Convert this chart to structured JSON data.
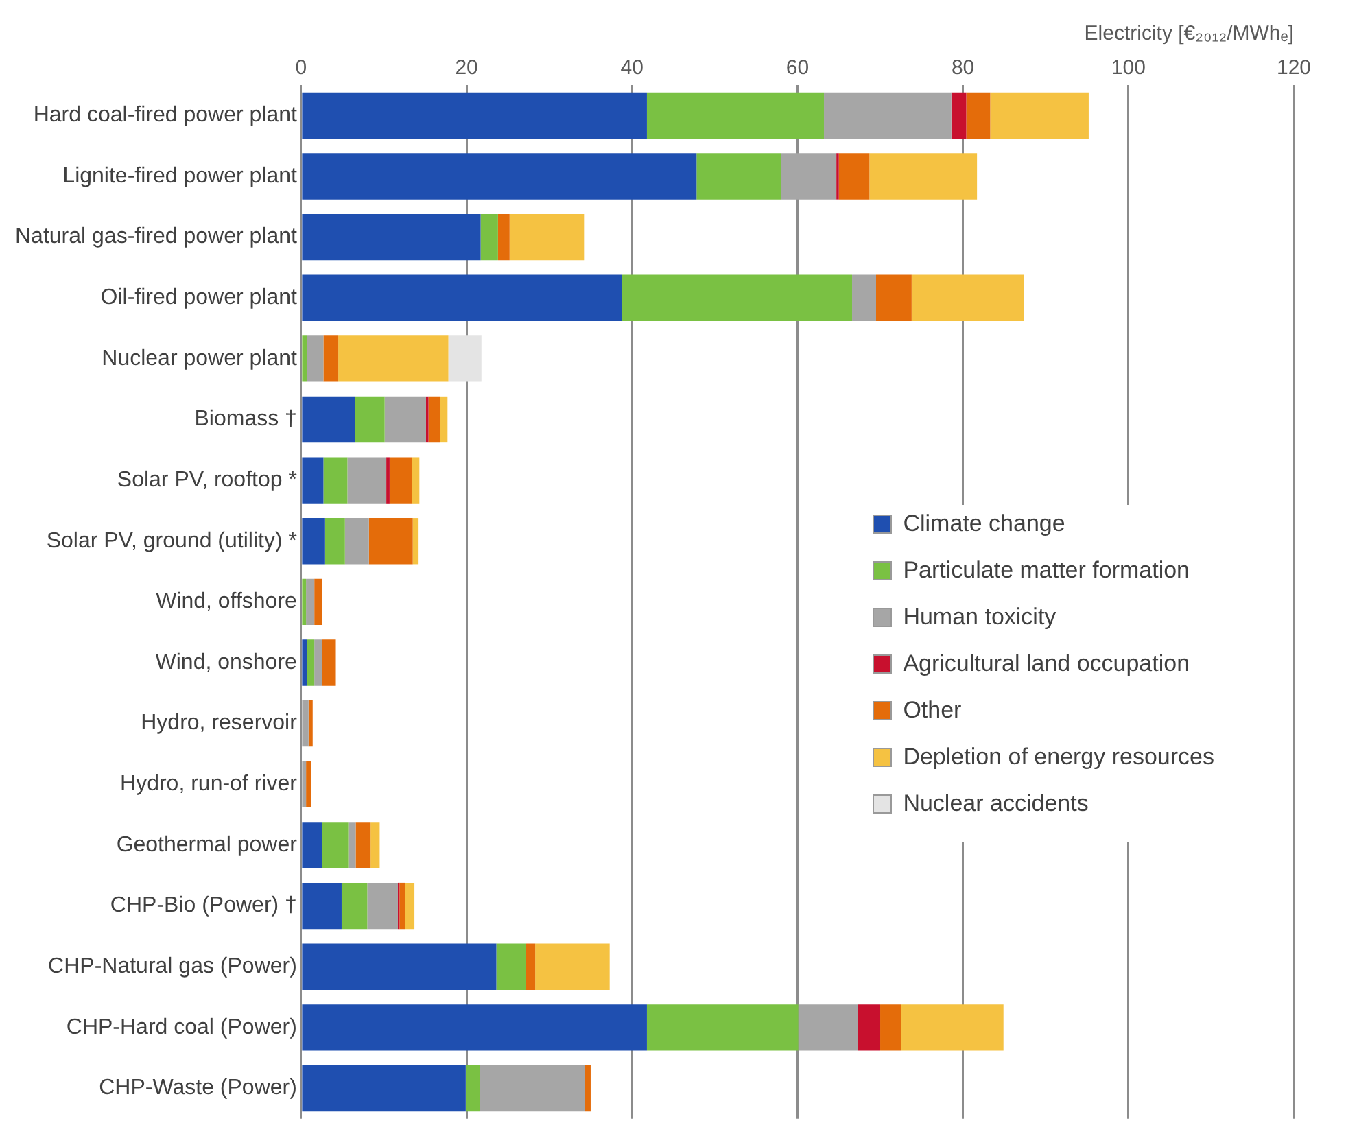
{
  "chart_data": {
    "type": "bar",
    "orientation": "horizontal",
    "stacked": true,
    "xlabel": "Electricity [€₂₀₁₂/MWhₑ]",
    "categories": [
      "Hard coal-fired power plant",
      "Lignite-fired power plant",
      "Natural gas-fired power plant",
      "Oil-fired power plant",
      "Nuclear power plant",
      "Biomass †",
      "Solar PV, rooftop *",
      "Solar PV, ground (utility) *",
      "Wind, offshore",
      "Wind, onshore",
      "Hydro, reservoir",
      "Hydro, run-of river",
      "Geothermal power",
      "CHP-Bio (Power) †",
      "CHP-Natural gas (Power)",
      "CHP-Hard coal (Power)",
      "CHP-Waste (Power)"
    ],
    "series": [
      {
        "name": "Climate change",
        "color": "#1f4fb0",
        "values": [
          41.8,
          47.8,
          21.7,
          38.8,
          null,
          6.5,
          2.7,
          2.9,
          null,
          0.7,
          null,
          null,
          2.5,
          4.9,
          23.6,
          41.8,
          19.9
        ]
      },
      {
        "name": "Particulate matter formation",
        "color": "#7ac143",
        "values": [
          21.4,
          10.2,
          2.1,
          27.8,
          0.7,
          3.6,
          2.9,
          2.4,
          0.6,
          0.9,
          null,
          null,
          3.2,
          3.1,
          3.6,
          18.3,
          1.7
        ]
      },
      {
        "name": "Human toxicity",
        "color": "#a6a6a6",
        "values": [
          15.4,
          6.7,
          null,
          2.9,
          2.0,
          5.0,
          4.7,
          2.9,
          1.0,
          0.9,
          0.9,
          0.6,
          0.9,
          3.7,
          null,
          7.2,
          12.7
        ]
      },
      {
        "name": "Agricultural land occupation",
        "color": "#c8102e",
        "values": [
          1.8,
          0.3,
          null,
          null,
          null,
          0.3,
          0.4,
          null,
          null,
          null,
          null,
          null,
          null,
          0.2,
          null,
          2.7,
          null
        ]
      },
      {
        "name": "Other",
        "color": "#e46c0a",
        "values": [
          2.9,
          3.7,
          1.4,
          4.3,
          1.8,
          1.4,
          2.7,
          5.3,
          0.9,
          1.7,
          0.5,
          0.6,
          1.8,
          0.7,
          1.1,
          2.5,
          0.7
        ]
      },
      {
        "name": "Depletion of energy resources",
        "color": "#f5c242",
        "values": [
          11.9,
          13.0,
          9.0,
          13.6,
          13.3,
          0.9,
          0.9,
          0.7,
          null,
          null,
          null,
          null,
          1.1,
          1.1,
          9.0,
          12.4,
          null
        ]
      },
      {
        "name": "Nuclear accidents",
        "color": "#e4e4e4",
        "values": [
          null,
          null,
          null,
          null,
          4.0,
          null,
          null,
          null,
          null,
          null,
          null,
          null,
          null,
          null,
          null,
          null,
          null
        ]
      }
    ],
    "xlim": [
      0,
      120
    ],
    "xticks": [
      0,
      20,
      40,
      60,
      80,
      100,
      120
    ],
    "grid": "x",
    "legend": "right"
  }
}
